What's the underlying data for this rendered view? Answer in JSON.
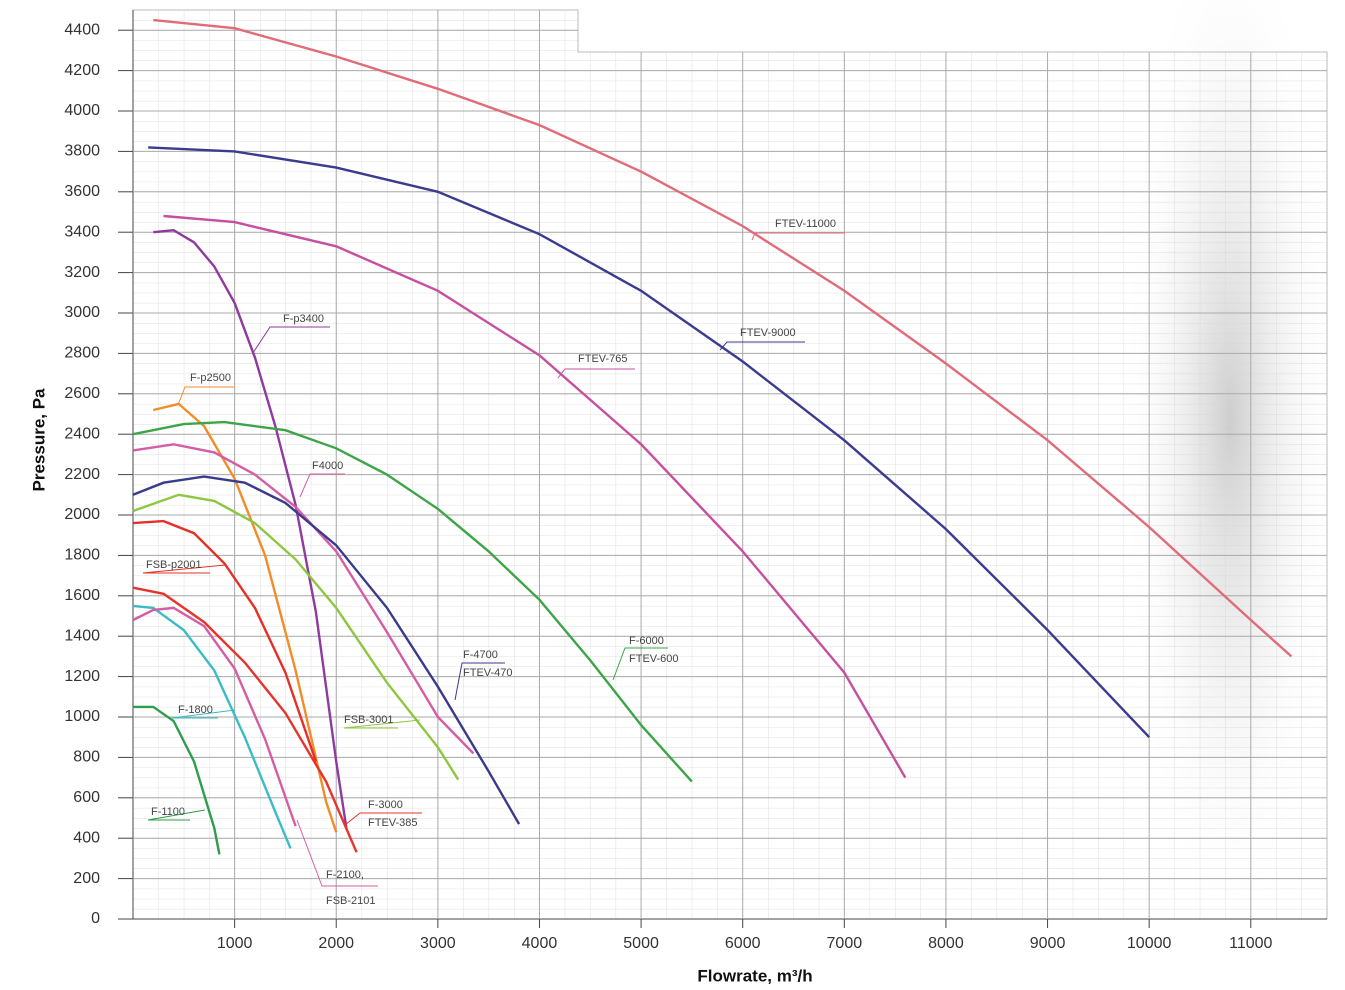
{
  "chart_data": {
    "type": "line",
    "x_label": "Flowrate, m³/h",
    "y_label": "Pressure, Pa",
    "xlim": [
      0,
      11750
    ],
    "ylim": [
      0,
      4500
    ],
    "xticks": [
      1000,
      2000,
      3000,
      4000,
      5000,
      6000,
      7000,
      8000,
      9000,
      10000,
      11000
    ],
    "yticks": [
      0,
      200,
      400,
      600,
      800,
      1000,
      1200,
      1400,
      1600,
      1800,
      2000,
      2200,
      2400,
      2600,
      2800,
      3000,
      3200,
      3400,
      3600,
      3800,
      4000,
      4200,
      4400
    ],
    "grid": true,
    "series": [
      {
        "labels": [
          "FTEV-11000"
        ],
        "color": "#e06c7a",
        "x": [
          200,
          1000,
          2000,
          3000,
          4000,
          5000,
          6000,
          7000,
          8000,
          9000,
          10000,
          11000,
          11400
        ],
        "values": [
          4450,
          4410,
          4270,
          4110,
          3930,
          3700,
          3430,
          3110,
          2750,
          2370,
          1940,
          1480,
          1300
        ]
      },
      {
        "labels": [
          "FTEV-9000"
        ],
        "color": "#3b3b8f",
        "x": [
          150,
          1000,
          2000,
          3000,
          4000,
          5000,
          6000,
          7000,
          8000,
          9000,
          10000
        ],
        "values": [
          3820,
          3800,
          3720,
          3600,
          3390,
          3110,
          2760,
          2370,
          1930,
          1430,
          900
        ]
      },
      {
        "labels": [
          "FTEV-765"
        ],
        "color": "#c74fa0",
        "x": [
          300,
          1000,
          2000,
          3000,
          4000,
          5000,
          6000,
          7000,
          7600
        ],
        "values": [
          3480,
          3450,
          3330,
          3110,
          2790,
          2350,
          1820,
          1220,
          700
        ]
      },
      {
        "labels": [
          "F-p3400"
        ],
        "color": "#8e3a9e",
        "x": [
          200,
          400,
          600,
          800,
          1000,
          1200,
          1400,
          1600,
          1800,
          2000,
          2100
        ],
        "values": [
          3400,
          3410,
          3350,
          3230,
          3050,
          2780,
          2440,
          2050,
          1520,
          780,
          450
        ]
      },
      {
        "labels": [
          "F-p2500"
        ],
        "color": "#f28c28",
        "x": [
          200,
          450,
          700,
          1000,
          1300,
          1600,
          1900,
          2000
        ],
        "values": [
          2520,
          2550,
          2440,
          2180,
          1800,
          1230,
          580,
          430
        ]
      },
      {
        "labels": [
          "F4000"
        ],
        "color": "#d45da6",
        "x": [
          0,
          400,
          800,
          1200,
          1600,
          2000,
          2500,
          3000,
          3350
        ],
        "values": [
          2320,
          2350,
          2310,
          2200,
          2040,
          1820,
          1420,
          1000,
          820
        ]
      },
      {
        "labels": [
          "F-4700",
          "FTEV-470"
        ],
        "color": "#3a3a8c",
        "x": [
          0,
          300,
          700,
          1100,
          1500,
          2000,
          2500,
          3000,
          3500,
          3800
        ],
        "values": [
          2100,
          2160,
          2190,
          2160,
          2060,
          1850,
          1540,
          1150,
          730,
          470
        ]
      },
      {
        "labels": [
          "F-6000",
          "FTEV-600"
        ],
        "color": "#3da548",
        "x": [
          0,
          500,
          900,
          1500,
          2000,
          2500,
          3000,
          3500,
          4000,
          4500,
          5000,
          5500
        ],
        "values": [
          2400,
          2450,
          2460,
          2420,
          2330,
          2200,
          2030,
          1820,
          1580,
          1280,
          960,
          680
        ]
      },
      {
        "labels": [
          "FSB-3001"
        ],
        "color": "#8dc63f",
        "x": [
          0,
          450,
          800,
          1200,
          1600,
          2000,
          2500,
          3000,
          3200
        ],
        "values": [
          2020,
          2100,
          2070,
          1960,
          1780,
          1540,
          1170,
          850,
          690
        ]
      },
      {
        "labels": [
          "FSB-p2001"
        ],
        "color": "#e53027",
        "x": [
          0,
          300,
          600,
          900,
          1200,
          1500,
          1800
        ],
        "values": [
          1960,
          1970,
          1910,
          1760,
          1540,
          1220,
          780
        ]
      },
      {
        "labels": [
          "F-1800"
        ],
        "color": "#3bbcc4",
        "x": [
          0,
          200,
          500,
          800,
          1100,
          1400,
          1550
        ],
        "values": [
          1550,
          1540,
          1430,
          1230,
          900,
          530,
          350
        ]
      },
      {
        "labels": [
          "F-1100"
        ],
        "color": "#2e9e4a",
        "x": [
          0,
          200,
          400,
          600,
          800,
          850
        ],
        "values": [
          1050,
          1050,
          980,
          780,
          450,
          320
        ]
      },
      {
        "labels": [
          "F-3000",
          "FTEV-385"
        ],
        "color": "#e5342b",
        "x": [
          0,
          300,
          700,
          1100,
          1500,
          1900,
          2200
        ],
        "values": [
          1640,
          1610,
          1470,
          1270,
          1020,
          680,
          330
        ]
      },
      {
        "labels": [
          "F-2100,",
          "FSB-2101"
        ],
        "color": "#d45da6",
        "x": [
          0,
          200,
          400,
          700,
          1000,
          1300,
          1600
        ],
        "values": [
          1480,
          1530,
          1540,
          1450,
          1240,
          890,
          460
        ]
      }
    ]
  }
}
